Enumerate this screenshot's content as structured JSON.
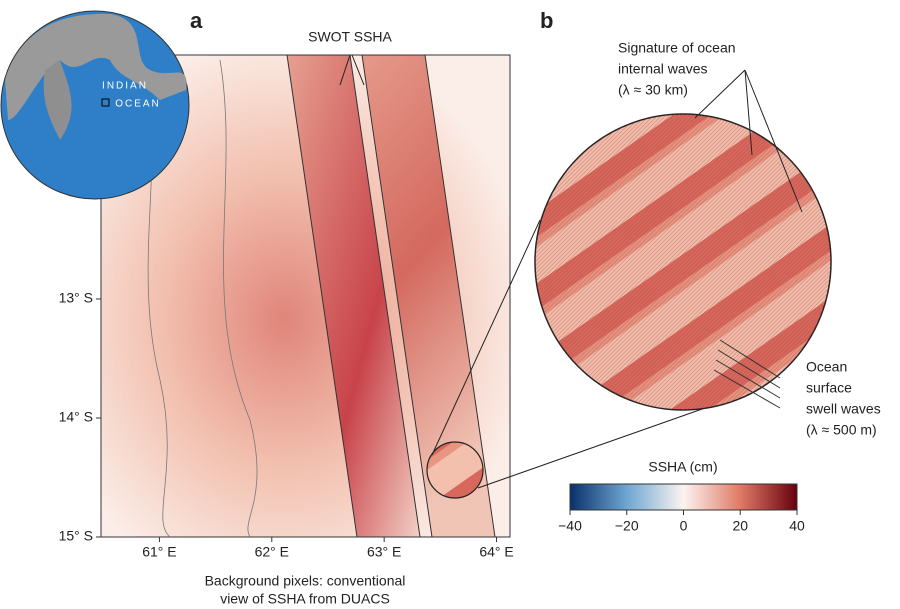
{
  "panel_a": {
    "label": "a",
    "swath_label": "SWOT SSHA",
    "caption": [
      "Background pixels: conventional",
      "view of SSHA from DUACS"
    ],
    "map": {
      "xlim": [
        60.48,
        64.12
      ],
      "ylim": [
        -15,
        -10.95
      ],
      "xticks": [
        {
          "value": 61,
          "label": "61° E"
        },
        {
          "value": 62,
          "label": "62° E"
        },
        {
          "value": 63,
          "label": "63° E"
        },
        {
          "value": 64,
          "label": "64° E"
        }
      ],
      "yticks": [
        {
          "value": -13,
          "label": "13° S"
        },
        {
          "value": -14,
          "label": "14° S"
        },
        {
          "value": -15,
          "label": "15° S"
        }
      ]
    }
  },
  "inset": {
    "labels": [
      "INDIAN",
      "OCEAN"
    ]
  },
  "panel_b": {
    "label": "b",
    "internal_waves": [
      "Signature of ocean",
      "internal waves",
      "(λ ≈ 30 km)"
    ],
    "swell_waves": [
      "Ocean",
      "surface",
      "swell waves",
      "(λ ≈ 500 m)"
    ]
  },
  "colorbar": {
    "title": "SSHA (cm)",
    "lim": [
      -40,
      40
    ],
    "ticks": [
      {
        "value": -40,
        "label": "−40"
      },
      {
        "value": -20,
        "label": "−20"
      },
      0,
      20,
      40
    ]
  }
}
